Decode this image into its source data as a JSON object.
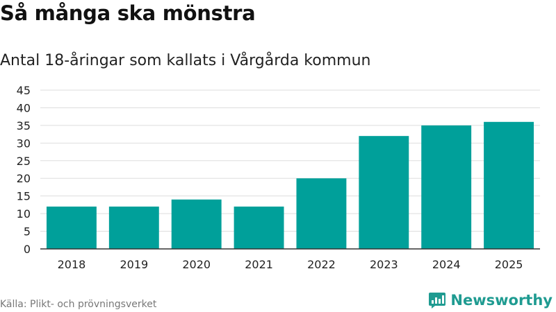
{
  "title": "Så många ska mönstra",
  "subtitle": "Antal 18-åringar som kallats i Vårgårda kommun",
  "source": "Källa: Plikt- och prövningsverket",
  "brand": {
    "name": "Newsworthy",
    "color": "#1f9b91",
    "icon": "newsworthy-logo-icon"
  },
  "colors": {
    "bar": "#00a09a",
    "grid": "#dddddd",
    "axis": "#333333"
  },
  "chart_data": {
    "type": "bar",
    "title": "Så många ska mönstra",
    "subtitle": "Antal 18-åringar som kallats i Vårgårda kommun",
    "xlabel": "",
    "ylabel": "",
    "categories": [
      "2018",
      "2019",
      "2020",
      "2021",
      "2022",
      "2023",
      "2024",
      "2025"
    ],
    "values": [
      12,
      12,
      14,
      12,
      20,
      32,
      35,
      36
    ],
    "ylim": [
      0,
      45
    ],
    "yticks": [
      0,
      5,
      10,
      15,
      20,
      25,
      30,
      35,
      40,
      45
    ],
    "grid": true,
    "legend": "none"
  }
}
